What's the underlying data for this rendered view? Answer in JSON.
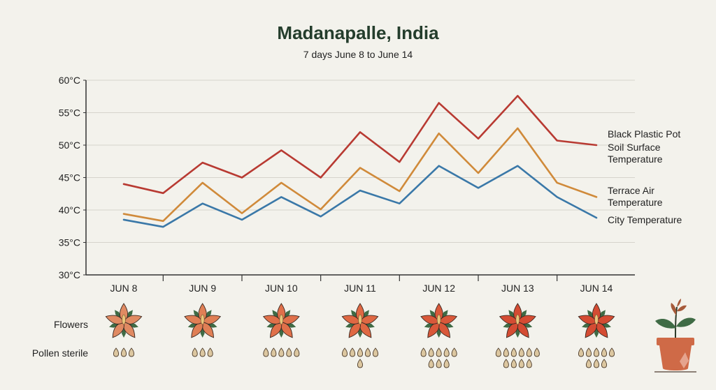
{
  "chart_data": {
    "type": "line",
    "title": "Madanapalle, India",
    "subtitle": "7 days June 8 to June 14",
    "xlabel": "",
    "ylabel": "",
    "categories": [
      "JUN 8",
      "JUN 9",
      "JUN 10",
      "JUN 11",
      "JUN 12",
      "JUN 13",
      "JUN 14"
    ],
    "x": [
      8,
      8.5,
      9,
      9.5,
      10,
      10.5,
      11,
      11.5,
      12,
      12.5,
      13,
      13.5,
      14
    ],
    "yticks": [
      "30°C",
      "35°C",
      "40°C",
      "45°C",
      "50°C",
      "55°C",
      "60°C"
    ],
    "ylim": [
      30,
      60
    ],
    "grid": true,
    "legend_placement": "right (end-of-line labels)",
    "series": [
      {
        "name": "Black Plastic Pot Soil Surface Temperature",
        "label_lines": [
          "Black Plastic Pot",
          "Soil Surface",
          "Temperature"
        ],
        "color": "#b83a32",
        "values": [
          44,
          42.6,
          47.3,
          45,
          49.2,
          45,
          52,
          47.4,
          56.5,
          51,
          57.6,
          50.7,
          50
        ]
      },
      {
        "name": "Terrace Air Temperature",
        "label_lines": [
          "Terrace Air",
          "Temperature"
        ],
        "color": "#d08a3a",
        "values": [
          39.4,
          38.3,
          44.2,
          39.5,
          44.2,
          40.1,
          46.5,
          42.9,
          51.8,
          45.7,
          52.6,
          44.2,
          42
        ]
      },
      {
        "name": "City Temperature",
        "label_lines": [
          "City Temperature"
        ],
        "color": "#3a78a8",
        "values": [
          38.5,
          37.4,
          41,
          38.5,
          42,
          39,
          43,
          41,
          46.8,
          43.4,
          46.8,
          42,
          38.8
        ]
      }
    ],
    "rows": {
      "flowers_label": "Flowers",
      "pollen_label": "Pollen sterile",
      "flower_colors": [
        "#e08a62",
        "#e07f55",
        "#e0704a",
        "#df6843",
        "#d9583a",
        "#d44c33",
        "#d44c33"
      ],
      "pollen_sterile_drops": [
        3,
        3,
        5,
        6,
        8,
        10,
        8
      ],
      "end_icon": "potted-plant-icon"
    }
  }
}
